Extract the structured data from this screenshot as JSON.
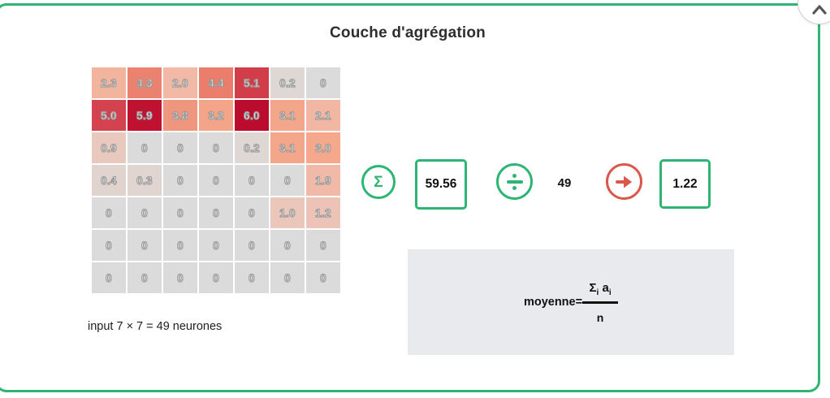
{
  "colors": {
    "green": "#2eb573",
    "red": "#db574b",
    "formula_bg": "#e9eaee",
    "cell_text": "#ffffff",
    "cell_text_outline": "#999999"
  },
  "header": {
    "title": "Couche d'agrégation"
  },
  "grid": {
    "rows": [
      [
        "2.3",
        "4.3",
        "2.0",
        "4.4",
        "5.1",
        "0.2",
        "0"
      ],
      [
        "5.0",
        "5.9",
        "3.8",
        "3.2",
        "6.0",
        "3.1",
        "2.1"
      ],
      [
        "0.9",
        "0",
        "0",
        "0",
        "0.2",
        "3.1",
        "3.0"
      ],
      [
        "0.4",
        "0.3",
        "0",
        "0",
        "0",
        "0",
        "1.9"
      ],
      [
        "0",
        "0",
        "0",
        "0",
        "0",
        "1.0",
        "1.2"
      ],
      [
        "0",
        "0",
        "0",
        "0",
        "0",
        "0",
        "0"
      ],
      [
        "0",
        "0",
        "0",
        "0",
        "0",
        "0",
        "0"
      ]
    ],
    "colormap": [
      [
        0,
        "#dbdbdb"
      ],
      [
        1,
        "#ebc6ba"
      ],
      [
        2,
        "#f2b9a6"
      ],
      [
        3,
        "#f5a88c"
      ],
      [
        4,
        "#ee927b"
      ],
      [
        4.5,
        "#e97868"
      ],
      [
        5,
        "#d5424f"
      ],
      [
        5.5,
        "#c82838"
      ],
      [
        6,
        "#bb0c2e"
      ]
    ],
    "caption": "input 7 × 7 = 49 neurones"
  },
  "pipeline": {
    "sum_icon": "Σ",
    "sum_value": "59.56",
    "divisor": "49",
    "result": "1.22"
  },
  "formula": {
    "lhs": "moyenne=",
    "sigma": "Σ",
    "sigma_sub": "i",
    "var": "a",
    "var_sub": "i",
    "denominator": "n"
  }
}
